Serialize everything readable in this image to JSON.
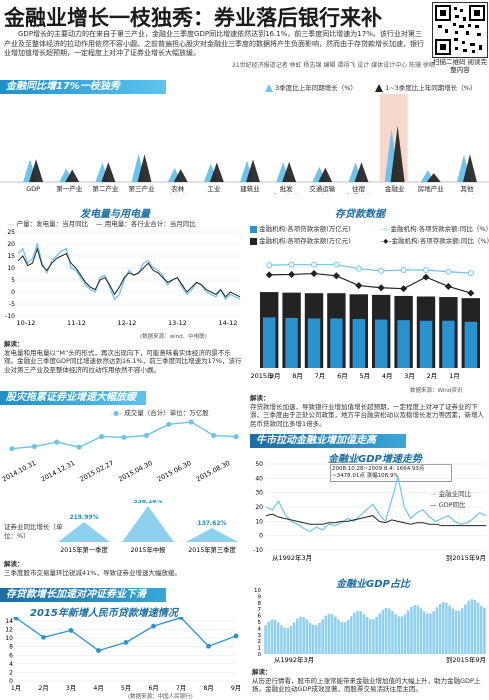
{
  "header": {
    "title": "金融业增长一枝独秀：券业落后银行来补",
    "intro": "GDP增长的主要动力的在来自于第三产业，金融业三季度GDP同比增速依然达到16.1%，前三季度同比增速为17%。该行业对第三产业及至整体经济的拉动作用依然不容小觑。之前普遍担心股灾对金融业三季度的数据将产生负面影响，然而由于存贷款增长加速，银行业增加值增长超预期，一定程度上对冲了证券业增长大幅放缓。",
    "credit": "21世纪经济报道记者 林虹 杨志锦 编辑 谭翊飞 设计 媒体设计中心 陈珊 徐晴",
    "qr_caption": "扫描二维码 阅读完整内容"
  },
  "section1": {
    "title": "金融同比增17%一枝独秀",
    "legend": [
      "3季度比上年同期增长（%）",
      "1~3季度比上年同期增长（%）"
    ],
    "categories": [
      "GDP",
      "第一产业",
      "第二产业",
      "第三产业",
      "农林牧渔业",
      "工业",
      "建筑业",
      "批发和零售业",
      "交通运输、仓储和邮政业",
      "住宿和餐饮业",
      "金融业",
      "房地产业",
      "其他服务业"
    ],
    "highlight": "金融业"
  },
  "section2": {
    "title": "发电量与用电量",
    "legend": [
      "产量：发电量：当月同比",
      "用电量：各行业合计：当月同比"
    ],
    "ylabel_ticks": [
      "25",
      "20",
      "15",
      "10",
      "5",
      "0",
      "-5",
      "-10"
    ],
    "xticks": [
      "10-12",
      "11-12",
      "12-12",
      "13-12",
      "14-12"
    ],
    "source": "(数据来源：wind、中电联)",
    "note_label": "解读：",
    "note": "发电量和用电量以“M”头的形式，再次出现向下，可能意味着实体经济的景不乐观。金融业三季度GDP同比增速依然达到16.1%，前三季度同比增速为17%，该行业对第三产业及至整体经济的拉动作用依然不容小觑。"
  },
  "section3": {
    "title": "存贷款数据",
    "legend": [
      "金融机构:各项贷款余额(万亿元)",
      "金融机构:各项贷款余额:同比（%）",
      "金融机构:各项存款余额(万亿元)",
      "金融机构:各项存款余额:同比（%）"
    ],
    "xticks": [
      "2015年",
      "9月",
      "8月",
      "7月",
      "6月",
      "5月",
      "4月",
      "3月",
      "2月",
      "1月"
    ],
    "source": "数据来源：Wind资讯",
    "note_label": "解读：",
    "note": "存贷款增长加速，导致银行业增加值增长超预期，一定程度上对冲了证券业的下滑，三季度由于正处公司政策，地方平台融资松动以及稳增长发力等因素，新增人民币贷款同比多增1倍多。"
  },
  "section4": {
    "title": "股灾拖累证券业增速大幅放缓",
    "legend": "成交量（合计）单位：万亿股",
    "xticks": [
      "2014.10.31",
      "2014.12.31",
      "2015.02.27",
      "2015.04.30",
      "2015.06.30",
      "2015.08.30"
    ],
    "growth_label": "证券业同比增长（单位：%）",
    "triangles": [
      {
        "value": "219.99%",
        "label": "2015年第一季度"
      },
      {
        "value": "336.14%",
        "label": "2015年中报"
      },
      {
        "value": "137.62%",
        "label": "2015年第三季度"
      }
    ],
    "note_label": "解读：",
    "note": "三季度股市交易量环比锐减41%，导致证券业增速大幅放缓。"
  },
  "section5": {
    "title": "存贷款增长加速对冲证券业下滑",
    "subtitle": "2015年新增人民币贷款增速情况",
    "yticks": [
      "14",
      "12",
      "10",
      "8",
      "6",
      "4",
      "2",
      "0"
    ],
    "xticks": [
      "1月",
      "2月",
      "3月",
      "4月",
      "5月",
      "6月",
      "7月",
      "8月",
      "9月"
    ],
    "source": "(数据来源：中国人民银行)"
  },
  "section6": {
    "title": "牛市拉动金融业增加值走高",
    "sub1": "金融业GDP增速走势",
    "annotation": "2008.10.28~2009.8.4: 1664.93点~3478.01点 涨幅108.9%",
    "legend": [
      "金融业同比",
      "GDP同比"
    ],
    "yticks": [
      "50",
      "40",
      "30",
      "20",
      "10",
      "0",
      "-10"
    ],
    "x_start": "从1992年3月",
    "x_end": "到2015年9月",
    "sub2": "金融业GDP占比",
    "yticks2": [
      "10",
      "9",
      "8",
      "7",
      "6",
      "5",
      "4",
      "3",
      "2",
      "1",
      "0"
    ],
    "x2_start": "从1992年3月",
    "x2_end": "到2015年9月",
    "note_label": "解读：",
    "note": "从历史行情看，股市的上涨常能带来金融业增加值的大幅上升，助力金融GDP上扬。金融业拉动GDP成效显著，而股票交易活跃往是主因。"
  },
  "chart_data": [
    {
      "type": "bar",
      "id": "industry",
      "categories": [
        "GDP",
        "第一产业",
        "第二产业",
        "第三产业",
        "农林牧渔业",
        "工业",
        "建筑业",
        "批发和零售业",
        "交通运输、仓储和邮政业",
        "住宿和餐饮业",
        "金融业",
        "房地产业",
        "其他服务业"
      ],
      "series": [
        {
          "name": "3季度比上年同期增长（%）",
          "values": [
            6.9,
            4.1,
            5.8,
            8.6,
            4.2,
            5.6,
            6.4,
            6.0,
            4.6,
            5.9,
            16.1,
            3.6,
            8.3
          ]
        },
        {
          "name": "1~3季度比上年同期增长（%）",
          "values": [
            6.9,
            3.8,
            6.0,
            8.4,
            3.9,
            5.9,
            6.8,
            6.1,
            4.3,
            6.0,
            17.0,
            2.7,
            8.4
          ]
        }
      ]
    },
    {
      "type": "line",
      "id": "power",
      "ylim": [
        -10,
        25
      ],
      "series": [
        {
          "name": "产量：发电量：当月同比",
          "values": [
            16,
            18,
            12,
            14,
            20,
            12,
            8,
            13,
            15,
            17,
            18,
            10,
            9,
            6,
            3,
            1,
            0,
            6,
            7,
            2,
            -3,
            -1,
            5,
            9,
            7,
            8,
            12,
            13,
            10,
            9,
            7,
            3,
            5,
            6,
            2,
            -1,
            1,
            4,
            3,
            0,
            -1,
            -2,
            1,
            -3,
            -1,
            -2,
            -3
          ]
        },
        {
          "name": "用电量：各行业合计：当月同比",
          "values": [
            13,
            15,
            11,
            12,
            18,
            11,
            9,
            12,
            14,
            15,
            16,
            12,
            10,
            7,
            4,
            2,
            1,
            5,
            6,
            3,
            -1,
            2,
            6,
            8,
            7,
            8,
            10,
            12,
            9,
            8,
            6,
            4,
            5,
            6,
            3,
            0,
            2,
            4,
            3,
            1,
            0,
            -1,
            1,
            -2,
            0,
            -1,
            -2
          ]
        }
      ]
    },
    {
      "type": "bar",
      "id": "loans",
      "categories": [
        "2015年9月",
        "8月",
        "7月",
        "6月",
        "5月",
        "4月",
        "3月",
        "2月",
        "1月",
        "2014"
      ],
      "series": [
        {
          "name": "金融机构:各项贷款余额(万亿元)",
          "values": [
            92,
            91,
            90,
            90,
            89,
            88,
            87,
            86,
            86,
            84
          ]
        },
        {
          "name": "金融机构:各项存款余额(万亿元)",
          "values": [
            138,
            137,
            136,
            136,
            134,
            133,
            131,
            130,
            129,
            127
          ]
        },
        {
          "name": "金融机构:各项贷款余额:同比（%）",
          "values": [
            15.4,
            15.5,
            15.5,
            15.5,
            14.6,
            14.1,
            14.3,
            14.3,
            13.9,
            13.6
          ]
        },
        {
          "name": "金融机构:各项存款余额:同比（%）",
          "values": [
            13.2,
            13.3,
            13.5,
            13.0,
            10.8,
            10.3,
            10.1,
            12.7,
            10.6,
            9.1
          ]
        }
      ]
    },
    {
      "type": "line",
      "id": "volume",
      "series": [
        {
          "name": "成交量（合计）",
          "values": [
            4.4,
            5.9,
            9.0,
            5.5,
            12.8,
            12.3,
            13.6,
            21.3,
            22.9,
            13.6,
            12.7
          ]
        }
      ]
    },
    {
      "type": "line",
      "id": "newloans",
      "categories": [
        "1月",
        "2月",
        "3月",
        "4月",
        "5月",
        "6月",
        "7月",
        "8月",
        "9月"
      ],
      "values": [
        14.7,
        10.2,
        11.8,
        7.1,
        9.0,
        12.8,
        14.8,
        8.1,
        10.5
      ],
      "ylim": [
        0,
        14
      ]
    }
  ],
  "colors": {
    "accent": "#1e8fc8",
    "dark": "#232323",
    "highlight": "#f6d9cc"
  }
}
